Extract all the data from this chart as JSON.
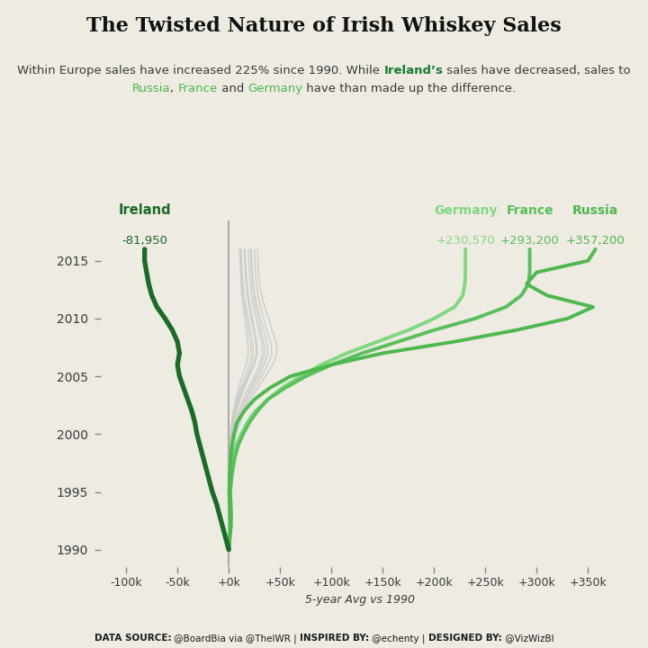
{
  "title": "The Twisted Nature of Irish Whiskey Sales",
  "subtitle_line1": [
    {
      "text": "Within Europe sales have increased 225% since 1990. While ",
      "color": "#3a3a3a",
      "bold": false
    },
    {
      "text": "Ireland’s",
      "color": "#1a7a30",
      "bold": true
    },
    {
      "text": " sales have decreased, sales to",
      "color": "#3a3a3a",
      "bold": false
    }
  ],
  "subtitle_line2": [
    {
      "text": "Russia",
      "color": "#4cb84c",
      "bold": false
    },
    {
      "text": ", ",
      "color": "#3a3a3a",
      "bold": false
    },
    {
      "text": "France",
      "color": "#4cb84c",
      "bold": false
    },
    {
      "text": " and ",
      "color": "#3a3a3a",
      "bold": false
    },
    {
      "text": "Germany",
      "color": "#4cb84c",
      "bold": false
    },
    {
      "text": " have than made up the difference.",
      "color": "#3a3a3a",
      "bold": false
    }
  ],
  "xlabel": "5-year Avg vs 1990",
  "xlim": [
    -125000,
    380000
  ],
  "ylim": [
    1988.5,
    2018.5
  ],
  "bg_color": "#eeebe3",
  "yticks": [
    1990,
    1995,
    2000,
    2005,
    2010,
    2015
  ],
  "xticks": [
    -100000,
    -50000,
    0,
    50000,
    100000,
    150000,
    200000,
    250000,
    300000,
    350000
  ],
  "xtick_labels": [
    "-100k",
    "-50k",
    "+0k",
    "+50k",
    "+100k",
    "+150k",
    "+200k",
    "+250k",
    "+300k",
    "+350k"
  ],
  "footer_segs": [
    {
      "text": "DATA SOURCE:",
      "bold": true
    },
    {
      "text": " @BoardBia via @TheIWR | ",
      "bold": false
    },
    {
      "text": "INSPIRED BY:",
      "bold": true
    },
    {
      "text": " @echenty | ",
      "bold": false
    },
    {
      "text": "DESIGNED BY:",
      "bold": true
    },
    {
      "text": " @VizWizBI",
      "bold": false
    }
  ],
  "ireland": {
    "years": [
      1990,
      1991,
      1992,
      1993,
      1994,
      1995,
      1996,
      1997,
      1998,
      1999,
      2000,
      2001,
      2002,
      2003,
      2004,
      2005,
      2006,
      2007,
      2008,
      2009,
      2010,
      2011,
      2012,
      2013,
      2014,
      2015,
      2016
    ],
    "values": [
      0,
      -3000,
      -6000,
      -9000,
      -12000,
      -16000,
      -19000,
      -22000,
      -25000,
      -28000,
      -31000,
      -33000,
      -36000,
      -40000,
      -44000,
      -48000,
      -50000,
      -48000,
      -50000,
      -55000,
      -62000,
      -70000,
      -75000,
      -78000,
      -80000,
      -82000,
      -81950
    ],
    "color": "#1a6b28",
    "lw": 3.8,
    "label": "Ireland",
    "change": "-81,950"
  },
  "russia": {
    "years": [
      1990,
      1991,
      1992,
      1993,
      1994,
      1995,
      1996,
      1997,
      1998,
      1999,
      2000,
      2001,
      2002,
      2003,
      2004,
      2005,
      2006,
      2007,
      2008,
      2009,
      2010,
      2011,
      2012,
      2013,
      2014,
      2015,
      2016
    ],
    "values": [
      0,
      1000,
      2000,
      1500,
      1000,
      500,
      800,
      1200,
      2000,
      3000,
      5000,
      8000,
      15000,
      25000,
      40000,
      60000,
      100000,
      150000,
      220000,
      280000,
      330000,
      355000,
      310000,
      290000,
      300000,
      350000,
      357200
    ],
    "color": "#4db84d",
    "lw": 2.8,
    "label": "Russia",
    "change": "+357,200"
  },
  "france": {
    "years": [
      1990,
      1991,
      1992,
      1993,
      1994,
      1995,
      1996,
      1997,
      1998,
      1999,
      2000,
      2001,
      2002,
      2003,
      2004,
      2005,
      2006,
      2007,
      2008,
      2009,
      2010,
      2011,
      2012,
      2013,
      2014,
      2015,
      2016
    ],
    "values": [
      0,
      1000,
      2000,
      2500,
      2000,
      1500,
      2500,
      4000,
      6000,
      9000,
      14000,
      20000,
      28000,
      38000,
      55000,
      75000,
      100000,
      130000,
      165000,
      200000,
      240000,
      270000,
      285000,
      292000,
      293200,
      293200,
      293200
    ],
    "color": "#5abf5a",
    "lw": 2.8,
    "label": "France",
    "change": "+293,200"
  },
  "germany": {
    "years": [
      1990,
      1991,
      1992,
      1993,
      1994,
      1995,
      1996,
      1997,
      1998,
      1999,
      2000,
      2001,
      2002,
      2003,
      2004,
      2005,
      2006,
      2007,
      2008,
      2009,
      2010,
      2011,
      2012,
      2013,
      2014,
      2015,
      2016
    ],
    "values": [
      0,
      500,
      1000,
      1500,
      1000,
      500,
      1000,
      2000,
      4000,
      7000,
      12000,
      18000,
      26000,
      38000,
      52000,
      70000,
      90000,
      115000,
      145000,
      175000,
      200000,
      220000,
      228000,
      230000,
      230570,
      230570,
      230570
    ],
    "color": "#80d880",
    "lw": 2.8,
    "label": "Germany",
    "change": "+230,570"
  },
  "grey_lines": [
    [
      0,
      500,
      800,
      600,
      400,
      300,
      400,
      600,
      900,
      1500,
      2500,
      4000,
      6000,
      9000,
      13000,
      18000,
      22000,
      24000,
      23000,
      21000,
      19000,
      17000,
      15000,
      14000,
      13000,
      12500,
      12000
    ],
    [
      0,
      400,
      700,
      900,
      700,
      500,
      600,
      900,
      1400,
      2200,
      3500,
      5500,
      8000,
      11000,
      15000,
      20000,
      25000,
      28000,
      27000,
      25000,
      23000,
      21000,
      19000,
      18000,
      17000,
      16500,
      16000
    ],
    [
      0,
      300,
      500,
      700,
      600,
      400,
      500,
      700,
      1100,
      1800,
      3000,
      4700,
      7000,
      10000,
      14000,
      19000,
      24000,
      27000,
      26000,
      24000,
      22000,
      20000,
      18000,
      17000,
      16000,
      15500,
      15000
    ],
    [
      0,
      600,
      1000,
      1200,
      1000,
      700,
      900,
      1300,
      1900,
      2900,
      4500,
      7000,
      10000,
      14000,
      19000,
      25000,
      30000,
      33000,
      32000,
      29000,
      27000,
      24000,
      22000,
      21000,
      20000,
      19500,
      19000
    ],
    [
      0,
      200,
      350,
      500,
      400,
      250,
      350,
      550,
      850,
      1400,
      2200,
      3500,
      5500,
      8000,
      11500,
      16000,
      20000,
      22000,
      21000,
      19000,
      17500,
      15500,
      14000,
      13000,
      12500,
      12000,
      11500
    ],
    [
      0,
      700,
      1100,
      1300,
      1100,
      800,
      1100,
      1600,
      2300,
      3400,
      5300,
      8000,
      11500,
      16000,
      21000,
      27000,
      32000,
      35000,
      34000,
      31000,
      29000,
      26000,
      24000,
      23000,
      22000,
      21500,
      21000
    ],
    [
      0,
      100,
      200,
      300,
      250,
      150,
      200,
      350,
      600,
      1000,
      1700,
      2800,
      4400,
      6500,
      9500,
      13000,
      17000,
      19000,
      18500,
      17000,
      15500,
      14000,
      12500,
      12000,
      11500,
      11000,
      10500
    ],
    [
      0,
      800,
      1300,
      1500,
      1200,
      900,
      1200,
      1700,
      2500,
      3700,
      5700,
      8700,
      12500,
      17000,
      22500,
      29000,
      34500,
      38000,
      37000,
      34000,
      31000,
      28000,
      25500,
      24000,
      23000,
      22500,
      22000
    ],
    [
      0,
      1000,
      1600,
      1800,
      1500,
      1100,
      1400,
      2000,
      2900,
      4200,
      6500,
      9800,
      14000,
      19000,
      25000,
      32000,
      38000,
      42000,
      41000,
      37000,
      34000,
      31000,
      28500,
      27000,
      26000,
      25500,
      25000
    ],
    [
      0,
      1200,
      1900,
      2100,
      1800,
      1300,
      1600,
      2300,
      3300,
      4800,
      7400,
      11000,
      15500,
      21000,
      28000,
      36000,
      43000,
      47000,
      46000,
      42000,
      39000,
      35000,
      32000,
      30000,
      29000,
      28500,
      28000
    ]
  ]
}
